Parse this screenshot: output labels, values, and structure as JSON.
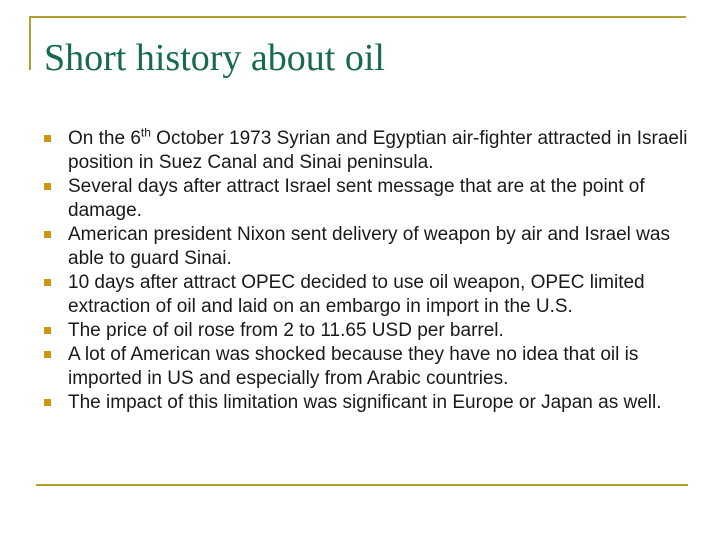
{
  "slide": {
    "title": "Short history about oil",
    "bullets": [
      {
        "segments": [
          {
            "t": "On the 6"
          },
          {
            "t": "th",
            "sup": true
          },
          {
            "t": " October 1973 Syrian and Egyptian air-fighter attracted in Israeli position in Suez Canal and Sinai peninsula."
          }
        ]
      },
      {
        "segments": [
          {
            "t": "Several days after attract Israel sent message that are at the point of damage."
          }
        ]
      },
      {
        "segments": [
          {
            "t": "American president Nixon sent delivery of weapon by air and Israel was able to guard Sinai."
          }
        ]
      },
      {
        "segments": [
          {
            "t": "10 days after attract OPEC decided to use oil weapon, OPEC limited extraction of oil and laid on an embargo in import in the U.S."
          }
        ]
      },
      {
        "segments": [
          {
            "t": "The price of oil rose from 2 to 11.65 USD per barrel."
          }
        ]
      },
      {
        "segments": [
          {
            "t": "A lot of American was shocked because they have no idea that oil is imported in US and especially from Arabic countries."
          }
        ]
      },
      {
        "segments": [
          {
            "t": "The impact of this limitation was significant in Europe or Japan as well."
          }
        ]
      }
    ]
  },
  "colors": {
    "rule_gold": "#b3a02c",
    "bullet_gold": "#c9990a",
    "title_green": "#176a4e",
    "body_text": "#1a1a1a",
    "slide_bg": "#ffffff"
  }
}
